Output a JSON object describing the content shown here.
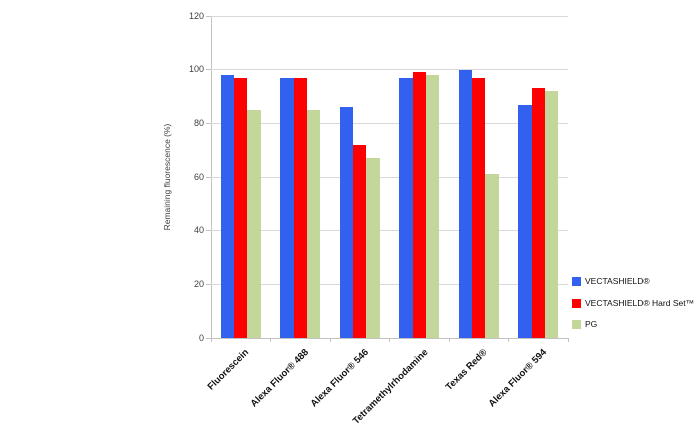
{
  "chart_data": {
    "type": "bar",
    "title": "",
    "xlabel": "",
    "ylabel": "Remaining fluorescence (%)",
    "ylim": [
      0,
      120
    ],
    "yticks": [
      0,
      20,
      40,
      60,
      80,
      100,
      120
    ],
    "grid": true,
    "legend_position": "right-bottom",
    "categories": [
      "Fluorescein",
      "Alexa Fluor® 488",
      "Alexa Fluor® 546",
      "Tetramethylrhodamine",
      "Texas Red®",
      "Alexa Fluor® 594"
    ],
    "series": [
      {
        "name": "VECTASHIELD®",
        "color": "#3261f0",
        "values": [
          98,
          97,
          86,
          97,
          100,
          87
        ]
      },
      {
        "name": "VECTASHIELD® Hard Set™",
        "color": "#fd0002",
        "values": [
          97,
          97,
          72,
          99,
          97,
          93
        ]
      },
      {
        "name": "PG",
        "color": "#c4d79b",
        "values": [
          85,
          85,
          67,
          98,
          61,
          92
        ]
      }
    ]
  },
  "colors": {
    "gridline": "#d9d9d9",
    "axis": "#c2c2c2",
    "tick_label": "#3f3f3f"
  }
}
